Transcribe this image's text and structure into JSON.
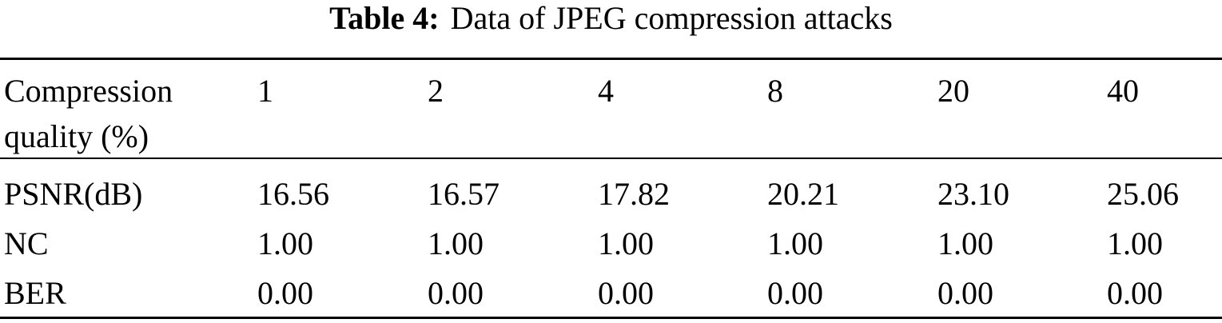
{
  "caption": {
    "label": "Table 4:",
    "text": "Data of JPEG compression attacks"
  },
  "table": {
    "header": [
      "Compression quality (%)",
      "1",
      "2",
      "4",
      "8",
      "20",
      "40"
    ],
    "rows": [
      [
        "PSNR(dB)",
        "16.56",
        "16.57",
        "17.82",
        "20.21",
        "23.10",
        "25.06"
      ],
      [
        "NC",
        "1.00",
        "1.00",
        "1.00",
        "1.00",
        "1.00",
        "1.00"
      ],
      [
        "BER",
        "0.00",
        "0.00",
        "0.00",
        "0.00",
        "0.00",
        "0.00"
      ]
    ]
  }
}
